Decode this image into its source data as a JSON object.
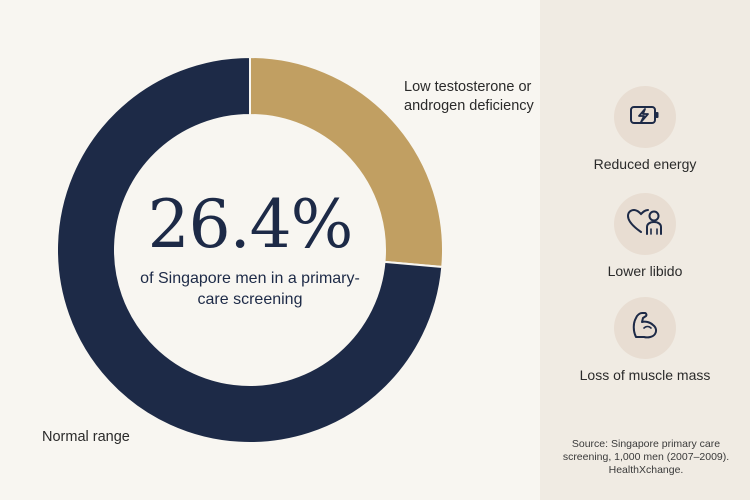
{
  "chart_data": {
    "type": "pie",
    "donut": true,
    "slices": [
      {
        "label": "Low testosterone or androgen deficiency",
        "value": 26.4,
        "color": "#c19f62"
      },
      {
        "label": "Normal range",
        "value": 73.6,
        "color": "#1d2a47"
      }
    ],
    "center_value": "26.4%",
    "center_caption": "of Singapore men in a primary-care screening"
  },
  "labels": {
    "low": "Low testosterone or androgen deficiency",
    "normal": "Normal range"
  },
  "symptoms": [
    {
      "label": "Reduced energy",
      "icon": "battery-low-icon"
    },
    {
      "label": "Lower libido",
      "icon": "heart-person-icon"
    },
    {
      "label": "Loss of muscle mass",
      "icon": "flexed-arm-icon"
    }
  ],
  "source": "Source: Singapore primary care screening, 1,000 men (2007–2009). HealthXchange.",
  "colors": {
    "navy": "#1d2a47",
    "gold": "#c19f62",
    "background": "#f8f6f1",
    "panel": "#f0ebe3",
    "icon_circle": "#e8ddd2"
  }
}
